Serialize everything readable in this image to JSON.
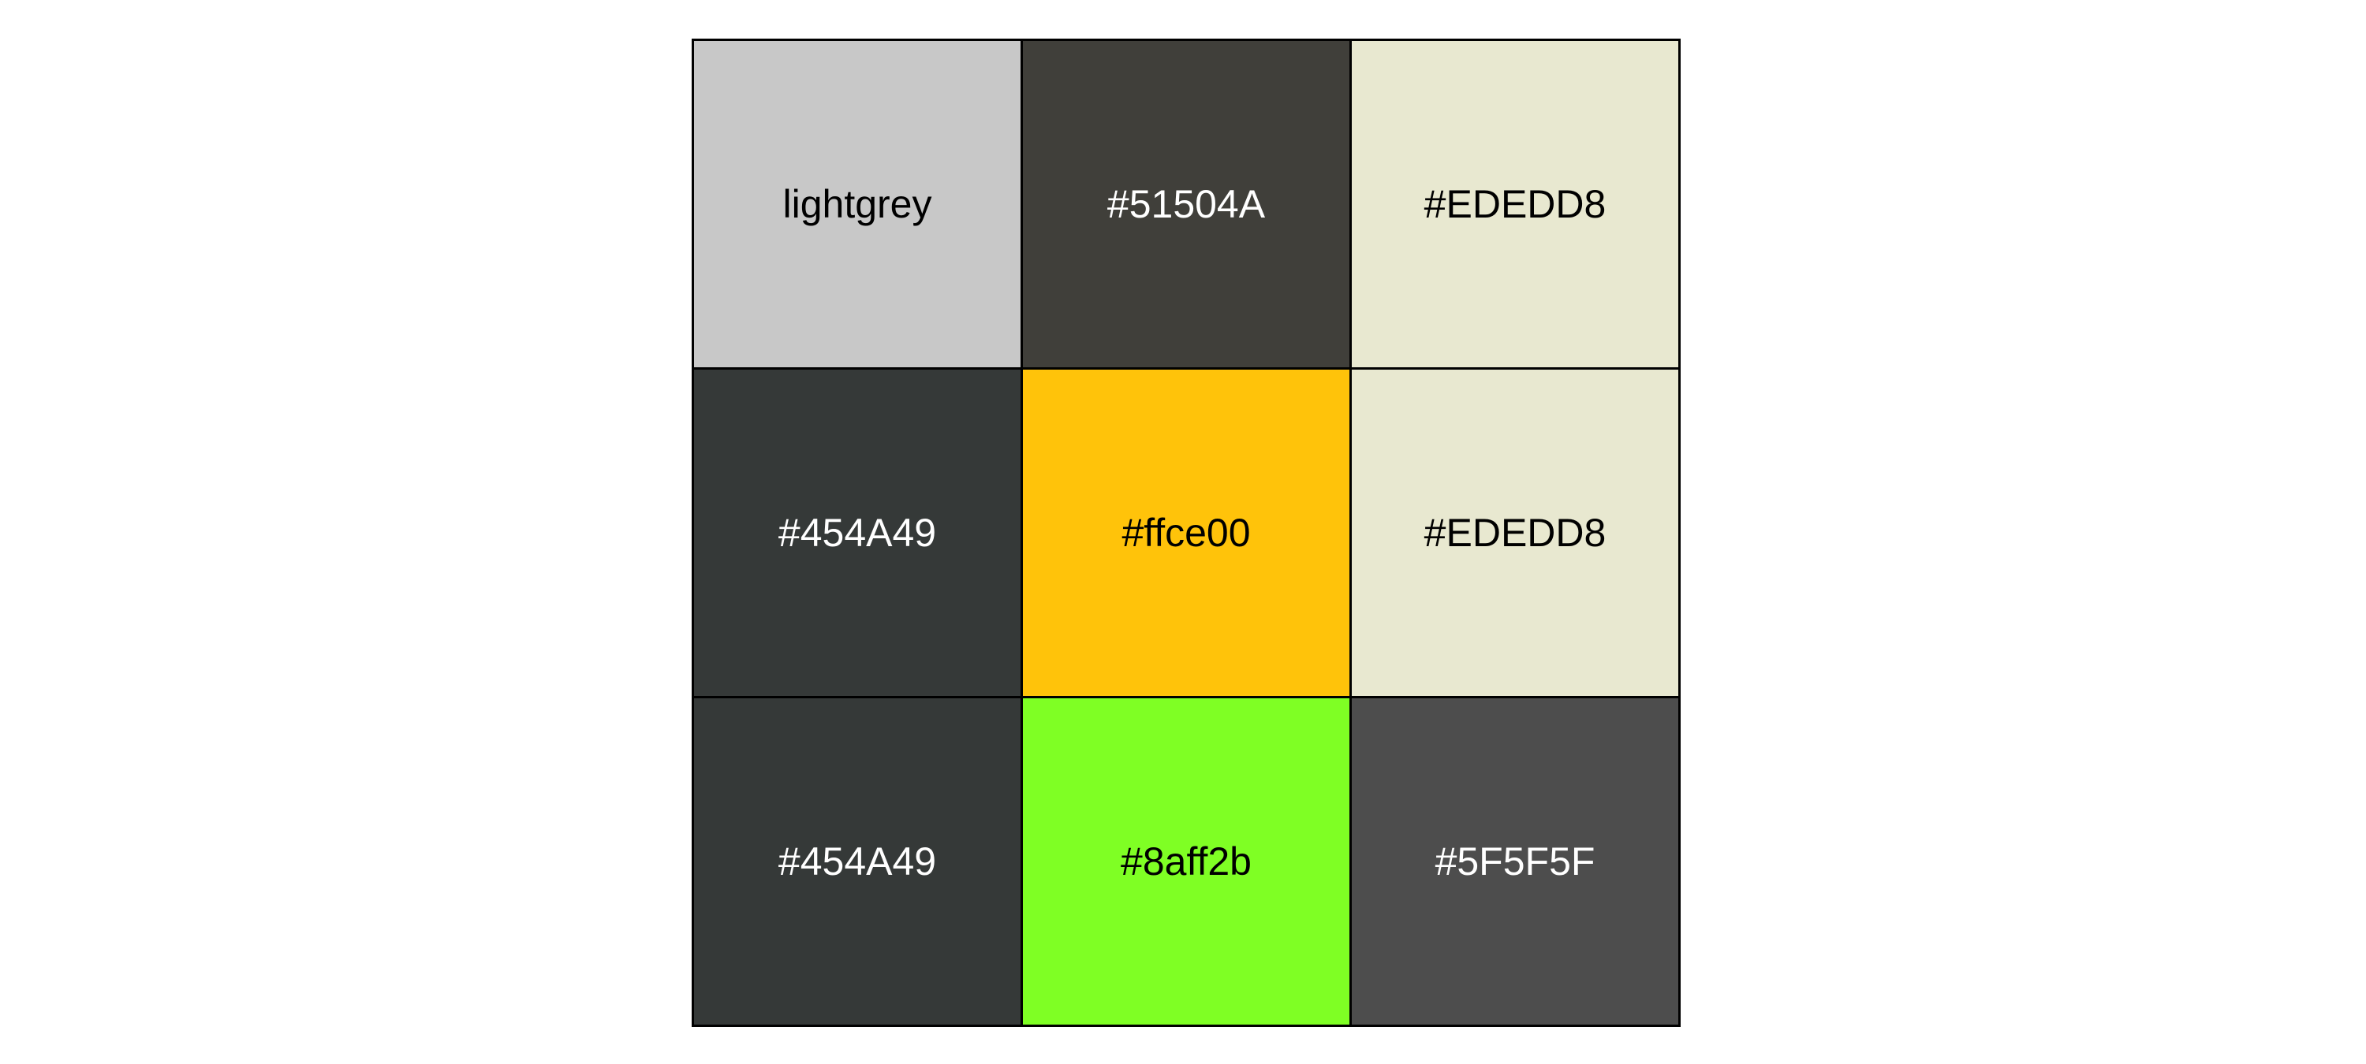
{
  "cells": [
    {
      "label": "lightgrey",
      "bg": "#C8C8C8",
      "fg": "#000000"
    },
    {
      "label": "#51504A",
      "bg": "#403F3A",
      "fg": "#FFFFFF"
    },
    {
      "label": "#EDEDD8",
      "bg": "#E8E8D0",
      "fg": "#000000"
    },
    {
      "label": "#454A49",
      "bg": "#353938",
      "fg": "#FFFFFF"
    },
    {
      "label": "#ffce00",
      "bg": "#FFC30A",
      "fg": "#000000"
    },
    {
      "label": "#EDEDD8",
      "bg": "#E8E8D0",
      "fg": "#000000"
    },
    {
      "label": "#454A49",
      "bg": "#353938",
      "fg": "#FFFFFF"
    },
    {
      "label": "#8aff2b",
      "bg": "#7FFF24",
      "fg": "#000000"
    },
    {
      "label": "#5F5F5F",
      "bg": "#4D4D4D",
      "fg": "#FFFFFF"
    }
  ]
}
